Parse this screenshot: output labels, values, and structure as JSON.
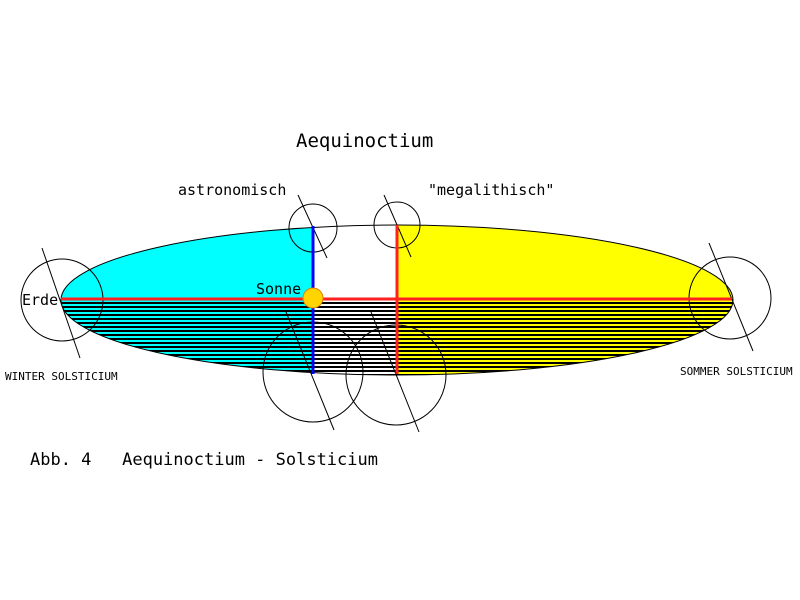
{
  "title": "Aequinoctium",
  "labels": {
    "astronomical": "astronomisch",
    "megalithic": "\"megalithisch\"",
    "sun": "Sonne",
    "earth": "Erde",
    "winter": "WINTER SOLSTICIUM",
    "summer": "SOMMER SOLSTICIUM"
  },
  "caption": "Abb. 4   Aequinoctium - Solsticium",
  "colors": {
    "astronomical_region": "#00ffff",
    "megalithic_region": "#ffff00",
    "axis_line": "#ff2020",
    "astronomical_line": "#0000ff",
    "sun": "#ffd400",
    "hatch": "#000000"
  }
}
